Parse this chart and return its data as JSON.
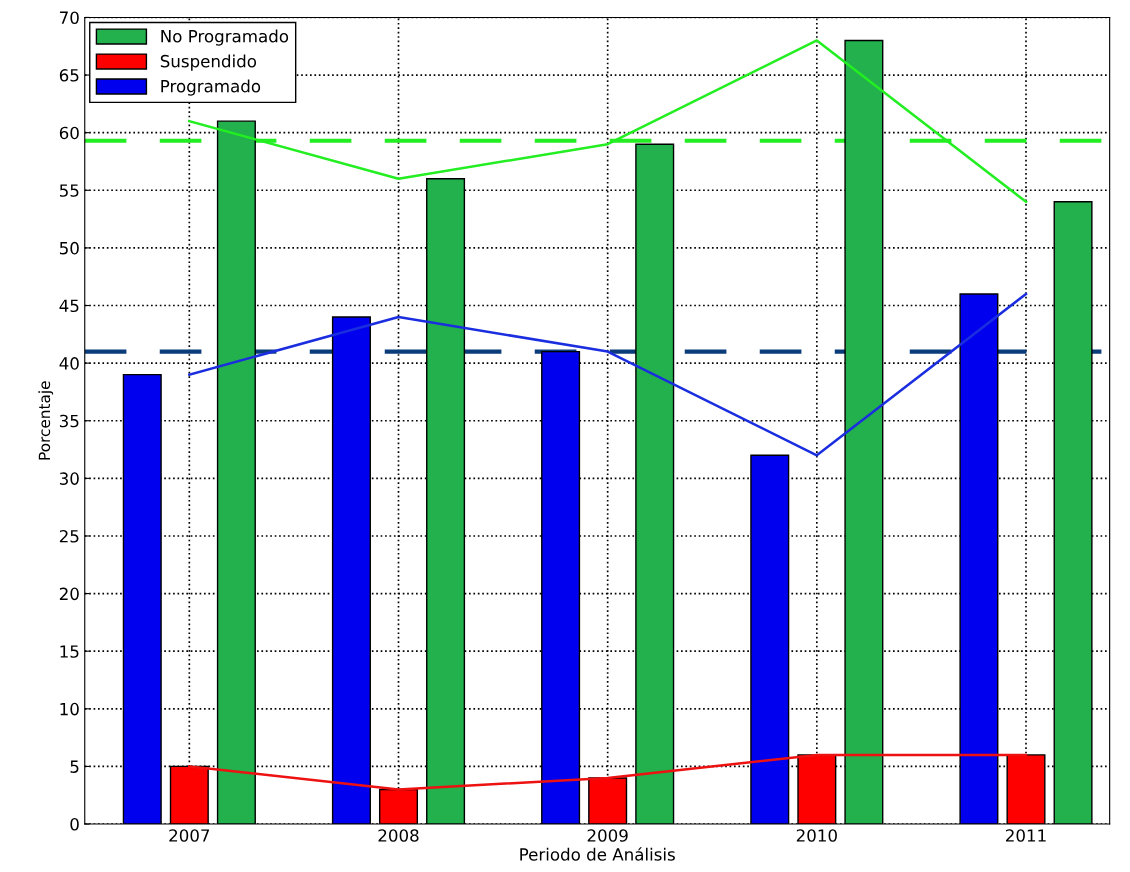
{
  "chart_data": {
    "type": "bar",
    "xlabel": "Periodo de Análisis",
    "ylabel": "Porcentaje",
    "categories": [
      "2007",
      "2008",
      "2009",
      "2010",
      "2011"
    ],
    "series": [
      {
        "name": "Programado",
        "color": "#0000ee",
        "values": [
          39,
          44,
          41,
          32,
          46
        ]
      },
      {
        "name": "Suspendido",
        "color": "#ff0000",
        "values": [
          5,
          3,
          4,
          6,
          6
        ]
      },
      {
        "name": "No Programado",
        "color": "#22b14c",
        "values": [
          61,
          56,
          59,
          68,
          54
        ]
      },
      {
        "type": "line",
        "color": "#22ee22",
        "values": [
          61,
          56,
          59,
          68,
          54
        ]
      },
      {
        "type": "line",
        "color": "#1a2ee0",
        "values": [
          39,
          44,
          41,
          32,
          46
        ]
      },
      {
        "type": "line",
        "color": "#ee1111",
        "values": [
          5,
          3,
          4,
          6,
          6
        ]
      }
    ],
    "ref_lines": [
      {
        "axis": "y",
        "value": 59.3,
        "color": "#22ee22",
        "line_style": "dashed"
      },
      {
        "axis": "y",
        "value": 41.0,
        "color": "#0b3c7a",
        "line_style": "dashed"
      }
    ],
    "ylim": [
      0,
      70
    ],
    "yticks": [
      0,
      5,
      10,
      15,
      20,
      25,
      30,
      35,
      40,
      45,
      50,
      55,
      60,
      65,
      70
    ],
    "grid": true,
    "legend": "top left"
  }
}
